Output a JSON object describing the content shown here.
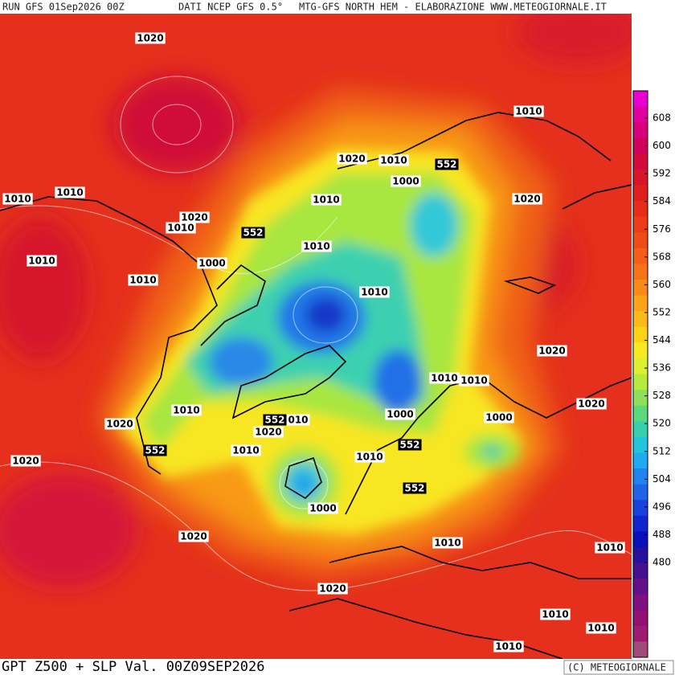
{
  "header": {
    "run": "RUN GFS 01Sep2026 00Z",
    "source": "DATI NCEP GFS 0.5°",
    "credit": "MTG-GFS NORTH HEM - ELABORAZIONE WWW.METEOGIORNALE.IT"
  },
  "footer": {
    "title": "GPT Z500 + SLP Val. 00Z09SEP2026",
    "copyright": "(C) METEOGIORNALE"
  },
  "slp_labels": [
    "1020",
    "1010",
    "1020",
    "1010",
    "1000",
    "1010",
    "1010",
    "1010",
    "1020",
    "1020",
    "1010",
    "1010",
    "1010",
    "1000",
    "1010",
    "1010",
    "1020",
    "1010",
    "1010",
    "1020",
    "1010",
    "1000",
    "1000",
    "1020",
    "010",
    "1020",
    "1010",
    "1010",
    "1020",
    "1000",
    "1020",
    "1010",
    "1010",
    "1020",
    "1010",
    "1010",
    "1010"
  ],
  "z500_labels": [
    "552",
    "552",
    "552",
    "552",
    "552",
    "552"
  ],
  "colorbar": {
    "labels": [
      "608",
      "600",
      "592",
      "584",
      "576",
      "568",
      "560",
      "552",
      "544",
      "536",
      "528",
      "520",
      "512",
      "504",
      "496",
      "488",
      "480"
    ],
    "colors": [
      "#e800d0",
      "#e000a0",
      "#d8007a",
      "#d0005a",
      "#d40a3c",
      "#d8162a",
      "#e0201e",
      "#e82c1a",
      "#ec3c18",
      "#f04c18",
      "#f45e18",
      "#f87218",
      "#fa8a18",
      "#fca218",
      "#fcba18",
      "#fcd218",
      "#f8ea20",
      "#dcf030",
      "#b8ea3e",
      "#8ee05a",
      "#5cd87c",
      "#38d0aa",
      "#22c6dc",
      "#20aaf0",
      "#2084f0",
      "#2062e8",
      "#1842e0",
      "#1024d0",
      "#0812b8",
      "#28109e",
      "#461090",
      "#641088",
      "#801080",
      "#921072",
      "#a01a72",
      "#a04a78"
    ]
  }
}
